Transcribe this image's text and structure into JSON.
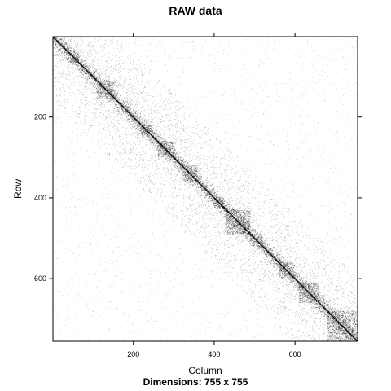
{
  "chart_data": {
    "type": "heatmap",
    "title": "RAW data",
    "subtitle": "Dimensions: 755 x 755",
    "xlabel": "Column",
    "ylabel": "Row",
    "xlim": [
      1,
      755
    ],
    "ylim": [
      755,
      1
    ],
    "x_ticks": [
      200,
      400,
      600
    ],
    "y_ticks": [
      200,
      400,
      600
    ],
    "tick_labels_x": [
      "200",
      "400",
      "600"
    ],
    "tick_labels_y": [
      "200",
      "400",
      "600"
    ],
    "matrix": {
      "rows": 755,
      "cols": 755,
      "symmetric": true,
      "pattern": "strong main diagonal with dense blocks"
    },
    "dense_blocks": [
      {
        "from": 40,
        "to": 65,
        "intensity": 0.45
      },
      {
        "from": 110,
        "to": 155,
        "intensity": 0.5
      },
      {
        "from": 220,
        "to": 250,
        "intensity": 0.45
      },
      {
        "from": 260,
        "to": 300,
        "intensity": 0.5
      },
      {
        "from": 320,
        "to": 360,
        "intensity": 0.55
      },
      {
        "from": 400,
        "to": 425,
        "intensity": 0.4
      },
      {
        "from": 430,
        "to": 490,
        "intensity": 0.55
      },
      {
        "from": 490,
        "to": 520,
        "intensity": 0.4
      },
      {
        "from": 560,
        "to": 600,
        "intensity": 0.45
      },
      {
        "from": 610,
        "to": 660,
        "intensity": 0.55
      },
      {
        "from": 680,
        "to": 755,
        "intensity": 0.5
      }
    ],
    "colors": {
      "ink": "#000000",
      "background": "#ffffff"
    }
  }
}
